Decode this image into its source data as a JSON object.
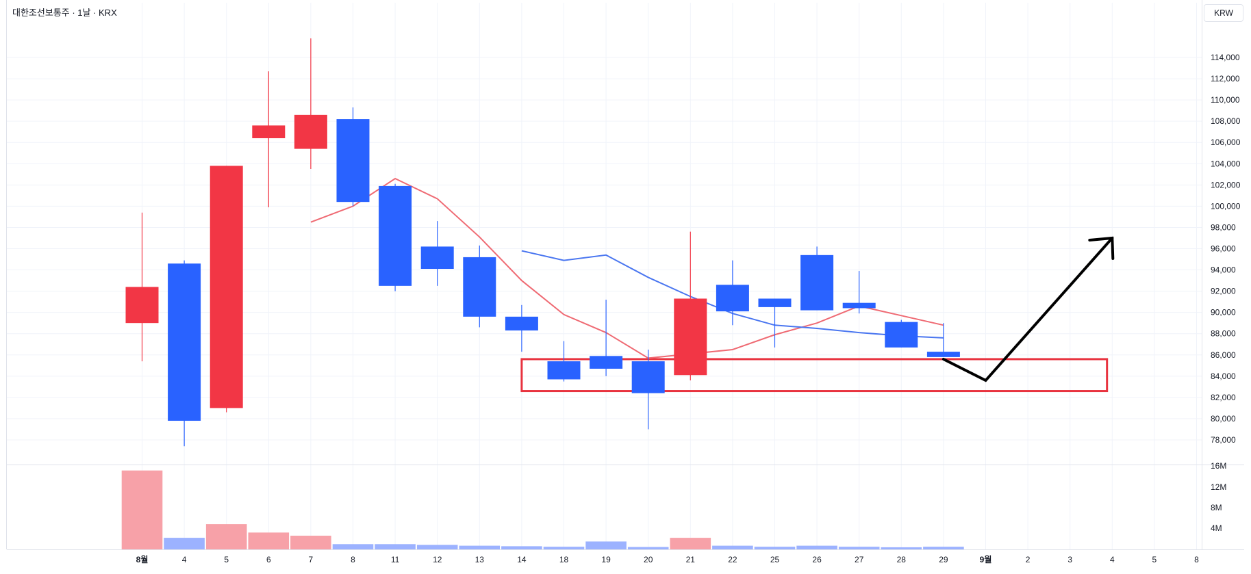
{
  "header": {
    "title": "대한조선보통주 · 1날 · KRX",
    "currency": "KRW"
  },
  "colors": {
    "up": "#f23645",
    "down": "#2962ff",
    "up_volume": "#f7a1a8",
    "down_volume": "#9cb2ff",
    "ma_short": "#ef6a73",
    "ma_long": "#4a76f0",
    "support_box": "#e8333f",
    "arrow": "#000000",
    "grid": "#f0f3fa"
  },
  "chart_data": {
    "type": "candlestick",
    "price_axis": {
      "ticks": [
        "78,000",
        "80,000",
        "82,000",
        "84,000",
        "86,000",
        "88,000",
        "90,000",
        "92,000",
        "94,000",
        "96,000",
        "98,000",
        "100,000",
        "102,000",
        "104,000",
        "106,000",
        "108,000",
        "110,000",
        "112,000",
        "114,000"
      ],
      "range": [
        76500,
        116000
      ]
    },
    "volume_axis": {
      "ticks": [
        "4M",
        "8M",
        "12M",
        "16M"
      ],
      "range": [
        0,
        16000000
      ]
    },
    "date_axis": {
      "labels": [
        {
          "text": "8월",
          "bold": true
        },
        {
          "text": "4",
          "bold": false
        },
        {
          "text": "5",
          "bold": false
        },
        {
          "text": "6",
          "bold": false
        },
        {
          "text": "7",
          "bold": false
        },
        {
          "text": "8",
          "bold": false
        },
        {
          "text": "11",
          "bold": false
        },
        {
          "text": "12",
          "bold": false
        },
        {
          "text": "13",
          "bold": false
        },
        {
          "text": "14",
          "bold": false
        },
        {
          "text": "18",
          "bold": false
        },
        {
          "text": "19",
          "bold": false
        },
        {
          "text": "20",
          "bold": false
        },
        {
          "text": "21",
          "bold": false
        },
        {
          "text": "22",
          "bold": false
        },
        {
          "text": "25",
          "bold": false
        },
        {
          "text": "26",
          "bold": false
        },
        {
          "text": "27",
          "bold": false
        },
        {
          "text": "28",
          "bold": false
        },
        {
          "text": "29",
          "bold": false
        },
        {
          "text": "9월",
          "bold": true
        },
        {
          "text": "2",
          "bold": false
        },
        {
          "text": "3",
          "bold": false
        },
        {
          "text": "4",
          "bold": false
        },
        {
          "text": "5",
          "bold": false
        },
        {
          "text": "8",
          "bold": false
        }
      ]
    },
    "candles": [
      {
        "date": "8월 1",
        "open": 89000,
        "high": 99400,
        "low": 85400,
        "close": 92400
      },
      {
        "date": "4",
        "open": 94600,
        "high": 94900,
        "low": 77400,
        "close": 79800
      },
      {
        "date": "5",
        "open": 81000,
        "high": 103800,
        "low": 80600,
        "close": 103800
      },
      {
        "date": "6",
        "open": 106400,
        "high": 112700,
        "low": 99900,
        "close": 107600
      },
      {
        "date": "7",
        "open": 105400,
        "high": 115800,
        "low": 103500,
        "close": 108600
      },
      {
        "date": "8",
        "open": 108200,
        "high": 109300,
        "low": 100000,
        "close": 100400
      },
      {
        "date": "11",
        "open": 101900,
        "high": 102100,
        "low": 92000,
        "close": 92500
      },
      {
        "date": "12",
        "open": 96200,
        "high": 98600,
        "low": 92500,
        "close": 94100
      },
      {
        "date": "13",
        "open": 95200,
        "high": 96300,
        "low": 88600,
        "close": 89600
      },
      {
        "date": "14",
        "open": 89600,
        "high": 90700,
        "low": 86300,
        "close": 88300
      },
      {
        "date": "18",
        "open": 85400,
        "high": 87300,
        "low": 83500,
        "close": 83700
      },
      {
        "date": "19",
        "open": 85900,
        "high": 91200,
        "low": 84000,
        "close": 84700
      },
      {
        "date": "20",
        "open": 85400,
        "high": 86500,
        "low": 79000,
        "close": 82400
      },
      {
        "date": "21",
        "open": 84100,
        "high": 97600,
        "low": 83600,
        "close": 91300
      },
      {
        "date": "22",
        "open": 92600,
        "high": 94900,
        "low": 88800,
        "close": 90100
      },
      {
        "date": "25",
        "open": 91300,
        "high": 91300,
        "low": 86700,
        "close": 90500
      },
      {
        "date": "26",
        "open": 95400,
        "high": 96200,
        "low": 90200,
        "close": 90200
      },
      {
        "date": "27",
        "open": 90900,
        "high": 93900,
        "low": 89900,
        "close": 90400
      },
      {
        "date": "28",
        "open": 89100,
        "high": 89300,
        "low": 86700,
        "close": 86700
      },
      {
        "date": "29",
        "open": 86300,
        "high": 89000,
        "low": 85800,
        "close": 85800
      }
    ],
    "volume": [
      15000000,
      2200000,
      4800000,
      3200000,
      2600000,
      1000000,
      1000000,
      850000,
      700000,
      600000,
      500000,
      1500000,
      450000,
      2200000,
      700000,
      500000,
      700000,
      500000,
      400000,
      500000
    ],
    "ma_short": {
      "start_index": 4,
      "values": [
        98500,
        100000,
        102600,
        100700,
        97100,
        93000,
        89800,
        88100,
        85700,
        86100,
        86500,
        87900,
        89000,
        90600,
        89700,
        88800
      ]
    },
    "ma_long": {
      "start_index": 9,
      "values": [
        95800,
        94900,
        95400,
        93300,
        91500,
        89900,
        88800,
        88500,
        88100,
        87800,
        87600
      ]
    },
    "support_box": {
      "from_index": 9,
      "to_index": 22,
      "top": 85600,
      "bottom": 82600
    },
    "projection_arrow": {
      "points": [
        {
          "index": 19,
          "price": 85600
        },
        {
          "index": 20,
          "price": 83600
        },
        {
          "index": 23,
          "price": 97000
        }
      ]
    }
  }
}
